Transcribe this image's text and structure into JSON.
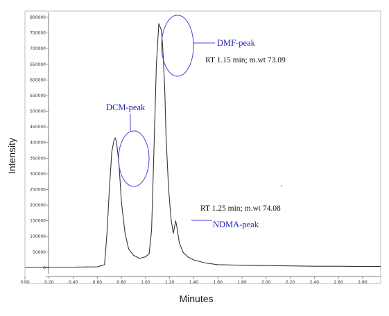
{
  "chart_data": {
    "type": "line",
    "title": "",
    "xlabel": "Minutes",
    "ylabel": "Intensity",
    "xlim": [
      0,
      2.95
    ],
    "ylim": [
      -50000,
      820000
    ],
    "x_ticks": [
      0.0,
      0.2,
      0.4,
      0.6,
      0.8,
      1.0,
      1.2,
      1.4,
      1.6,
      1.8,
      2.0,
      2.2,
      2.4,
      2.6,
      2.8
    ],
    "x_tick_labels": [
      "0.00",
      "0.20",
      "0.40",
      "0.60",
      "0.80",
      "1.00",
      "1.20",
      "1.40",
      "1.60",
      "1.80",
      "2.00",
      "2.20",
      "2.40",
      "2.60",
      "2.80"
    ],
    "y_ticks": [
      0,
      50000,
      100000,
      150000,
      200000,
      250000,
      300000,
      350000,
      400000,
      450000,
      500000,
      550000,
      600000,
      650000,
      700000,
      750000,
      800000
    ],
    "y_tick_labels": [
      "0",
      "50000",
      "100000",
      "150000",
      "200000",
      "250000",
      "300000",
      "350000",
      "400000",
      "450000",
      "500000",
      "550000",
      "600000",
      "650000",
      "700000",
      "750000",
      "800000"
    ],
    "grid": false,
    "series": [
      {
        "color": "#333333",
        "x": [
          0.0,
          0.2,
          0.4,
          0.6,
          0.66,
          0.68,
          0.7,
          0.72,
          0.74,
          0.75,
          0.76,
          0.78,
          0.8,
          0.83,
          0.86,
          0.9,
          0.95,
          1.0,
          1.03,
          1.05,
          1.07,
          1.09,
          1.11,
          1.13,
          1.14,
          1.15,
          1.16,
          1.17,
          1.19,
          1.21,
          1.23,
          1.24,
          1.25,
          1.26,
          1.28,
          1.31,
          1.35,
          1.4,
          1.45,
          1.5,
          1.6,
          1.8,
          2.0,
          2.2,
          2.4,
          2.6,
          2.8,
          2.95
        ],
        "y": [
          2000,
          2000,
          2000,
          3000,
          10000,
          110000,
          250000,
          370000,
          410000,
          415000,
          400000,
          330000,
          210000,
          110000,
          60000,
          40000,
          30000,
          35000,
          45000,
          120000,
          380000,
          650000,
          780000,
          760000,
          720000,
          650000,
          560000,
          420000,
          260000,
          160000,
          110000,
          130000,
          150000,
          130000,
          80000,
          50000,
          35000,
          25000,
          20000,
          15000,
          10000,
          8000,
          7000,
          6000,
          5000,
          5000,
          4000,
          4000
        ]
      }
    ],
    "annotations": [
      {
        "id": "dcm",
        "label": "DCM-peak",
        "x": 0.75,
        "y": 380000
      },
      {
        "id": "dmf",
        "label": "DMF-peak",
        "note": "RT 1.15 min; m.wt 73.09",
        "x": 1.13,
        "y": 700000
      },
      {
        "id": "ndma",
        "label": "NDMA-peak",
        "note": "RT 1.25 min; m.wt 74.08",
        "x": 1.25,
        "y": 150000
      }
    ]
  }
}
